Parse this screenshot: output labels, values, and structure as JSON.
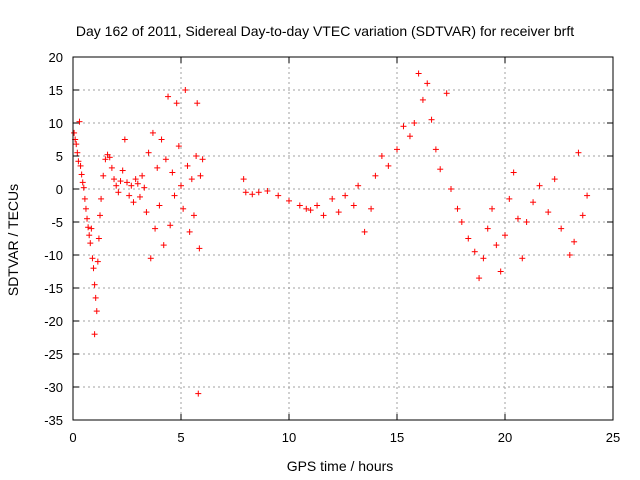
{
  "chart_data": {
    "type": "scatter",
    "title": "Day 162 of 2011, Sidereal Day-to-day VTEC variation (SDTVAR) for receiver brft",
    "xlabel": "GPS time / hours",
    "ylabel": "SDTVAR / TECUs",
    "xlim": [
      0,
      25
    ],
    "ylim": [
      -35,
      20
    ],
    "xticks": [
      0,
      5,
      10,
      15,
      20,
      25
    ],
    "yticks": [
      20,
      15,
      10,
      5,
      0,
      -5,
      -10,
      -15,
      -20,
      -25,
      -30,
      -35
    ],
    "grid": true,
    "marker": "+",
    "color": "#ff0000",
    "series": [
      {
        "name": "SDTVAR",
        "points": [
          [
            0.05,
            8.5
          ],
          [
            0.1,
            7.5
          ],
          [
            0.15,
            6.8
          ],
          [
            0.2,
            5.5
          ],
          [
            0.25,
            4.2
          ],
          [
            0.3,
            10.2
          ],
          [
            0.35,
            3.5
          ],
          [
            0.4,
            2.2
          ],
          [
            0.45,
            1.0
          ],
          [
            0.5,
            0.2
          ],
          [
            0.55,
            -1.5
          ],
          [
            0.6,
            -3.0
          ],
          [
            0.65,
            -4.5
          ],
          [
            0.7,
            -5.8
          ],
          [
            0.75,
            -7.0
          ],
          [
            0.8,
            -8.2
          ],
          [
            0.85,
            -6.0
          ],
          [
            0.9,
            -10.5
          ],
          [
            0.95,
            -12.0
          ],
          [
            1.0,
            -14.5
          ],
          [
            1.05,
            -16.5
          ],
          [
            1.1,
            -18.5
          ],
          [
            1.0,
            -22.0
          ],
          [
            1.15,
            -11.0
          ],
          [
            1.2,
            -7.5
          ],
          [
            1.25,
            -4.0
          ],
          [
            1.3,
            -1.5
          ],
          [
            1.4,
            2.0
          ],
          [
            1.5,
            4.5
          ],
          [
            1.6,
            5.2
          ],
          [
            1.7,
            4.8
          ],
          [
            1.8,
            3.2
          ],
          [
            1.9,
            1.5
          ],
          [
            2.0,
            0.5
          ],
          [
            2.1,
            -0.5
          ],
          [
            2.2,
            1.2
          ],
          [
            2.3,
            2.8
          ],
          [
            2.4,
            7.5
          ],
          [
            2.5,
            1.0
          ],
          [
            2.6,
            -1.0
          ],
          [
            2.7,
            0.5
          ],
          [
            2.8,
            -2.0
          ],
          [
            2.9,
            1.5
          ],
          [
            3.0,
            0.8
          ],
          [
            3.1,
            -1.2
          ],
          [
            3.2,
            2.0
          ],
          [
            3.3,
            0.2
          ],
          [
            3.4,
            -3.5
          ],
          [
            3.5,
            5.5
          ],
          [
            3.6,
            -10.5
          ],
          [
            3.7,
            8.5
          ],
          [
            3.8,
            -6.0
          ],
          [
            3.9,
            3.2
          ],
          [
            4.0,
            -2.5
          ],
          [
            4.1,
            7.5
          ],
          [
            4.2,
            -8.5
          ],
          [
            4.3,
            4.5
          ],
          [
            4.4,
            14.0
          ],
          [
            4.5,
            -5.5
          ],
          [
            4.6,
            2.5
          ],
          [
            4.7,
            -1.0
          ],
          [
            4.8,
            13.0
          ],
          [
            4.9,
            6.5
          ],
          [
            5.0,
            0.5
          ],
          [
            5.1,
            -3.0
          ],
          [
            5.2,
            15.0
          ],
          [
            5.3,
            3.5
          ],
          [
            5.4,
            -6.5
          ],
          [
            5.5,
            1.5
          ],
          [
            5.6,
            -4.0
          ],
          [
            5.7,
            5.0
          ],
          [
            5.75,
            13.0
          ],
          [
            5.8,
            -31.0
          ],
          [
            5.85,
            -9.0
          ],
          [
            5.9,
            2.0
          ],
          [
            6.0,
            4.5
          ],
          [
            7.9,
            1.5
          ],
          [
            8.0,
            -0.5
          ],
          [
            8.3,
            -0.8
          ],
          [
            8.6,
            -0.5
          ],
          [
            9.0,
            -0.3
          ],
          [
            9.5,
            -1.0
          ],
          [
            10.0,
            -1.8
          ],
          [
            10.5,
            -2.5
          ],
          [
            10.8,
            -3.0
          ],
          [
            11.0,
            -3.2
          ],
          [
            11.3,
            -2.5
          ],
          [
            11.6,
            -4.0
          ],
          [
            12.0,
            -1.5
          ],
          [
            12.3,
            -3.5
          ],
          [
            12.6,
            -1.0
          ],
          [
            13.0,
            -2.5
          ],
          [
            13.2,
            0.5
          ],
          [
            13.5,
            -6.5
          ],
          [
            13.8,
            -3.0
          ],
          [
            14.0,
            2.0
          ],
          [
            14.3,
            5.0
          ],
          [
            14.6,
            3.5
          ],
          [
            15.0,
            6.0
          ],
          [
            15.3,
            9.5
          ],
          [
            15.6,
            8.0
          ],
          [
            15.8,
            10.0
          ],
          [
            16.0,
            17.5
          ],
          [
            16.2,
            13.5
          ],
          [
            16.4,
            16.0
          ],
          [
            16.6,
            10.5
          ],
          [
            16.8,
            6.0
          ],
          [
            17.0,
            3.0
          ],
          [
            17.3,
            14.5
          ],
          [
            17.5,
            0.0
          ],
          [
            17.8,
            -3.0
          ],
          [
            18.0,
            -5.0
          ],
          [
            18.3,
            -7.5
          ],
          [
            18.6,
            -9.5
          ],
          [
            18.8,
            -13.5
          ],
          [
            19.0,
            -10.5
          ],
          [
            19.2,
            -6.0
          ],
          [
            19.4,
            -3.0
          ],
          [
            19.6,
            -8.5
          ],
          [
            19.8,
            -12.5
          ],
          [
            20.0,
            -7.0
          ],
          [
            20.2,
            -1.5
          ],
          [
            20.4,
            2.5
          ],
          [
            20.6,
            -4.5
          ],
          [
            20.8,
            -10.5
          ],
          [
            21.0,
            -5.0
          ],
          [
            21.3,
            -2.0
          ],
          [
            21.6,
            0.5
          ],
          [
            22.0,
            -3.5
          ],
          [
            22.3,
            1.5
          ],
          [
            22.6,
            -6.0
          ],
          [
            23.0,
            -10.0
          ],
          [
            23.2,
            -8.0
          ],
          [
            23.4,
            5.5
          ],
          [
            23.6,
            -4.0
          ],
          [
            23.8,
            -1.0
          ]
        ]
      }
    ]
  }
}
